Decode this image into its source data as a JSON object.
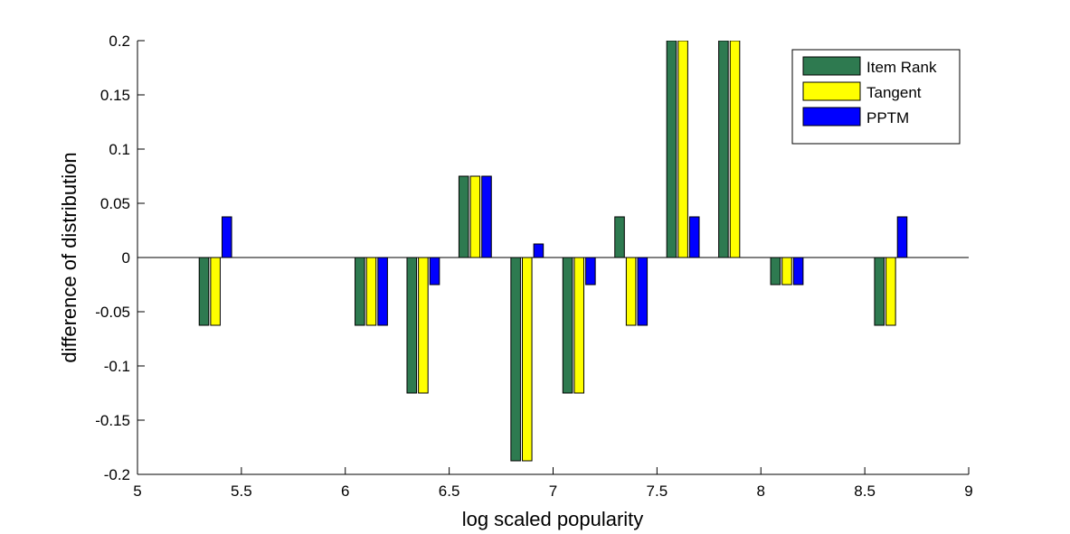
{
  "chart_data": {
    "type": "bar",
    "xlabel": "log scaled popularity",
    "ylabel": "difference of distribution",
    "x": [
      5.375,
      6.125,
      6.375,
      6.625,
      6.875,
      7.125,
      7.375,
      7.625,
      7.875,
      8.125,
      8.625
    ],
    "series": [
      {
        "name": "Item Rank",
        "color": "#2e7a50",
        "values": [
          -0.0625,
          -0.0625,
          -0.125,
          0.075,
          -0.1875,
          -0.125,
          0.0375,
          0.2,
          0.2,
          -0.025,
          -0.0625
        ]
      },
      {
        "name": "Tangent",
        "color": "#ffff00",
        "values": [
          -0.0625,
          -0.0625,
          -0.125,
          0.075,
          -0.1875,
          -0.125,
          -0.0625,
          0.2,
          0.2,
          -0.025,
          -0.0625
        ]
      },
      {
        "name": "PPTM",
        "color": "#0000ff",
        "values": [
          0.0375,
          -0.0625,
          -0.025,
          0.075,
          0.0125,
          -0.025,
          -0.0625,
          0.0375,
          0,
          -0.025,
          0.0375
        ]
      }
    ],
    "xlim": [
      5,
      9
    ],
    "xticks": [
      5,
      5.5,
      6,
      6.5,
      7,
      7.5,
      8,
      8.5,
      9
    ],
    "ylim": [
      -0.2,
      0.2
    ],
    "yticks": [
      -0.2,
      -0.15,
      -0.1,
      -0.05,
      0,
      0.05,
      0.1,
      0.15,
      0.2
    ],
    "legend": "northeast"
  }
}
